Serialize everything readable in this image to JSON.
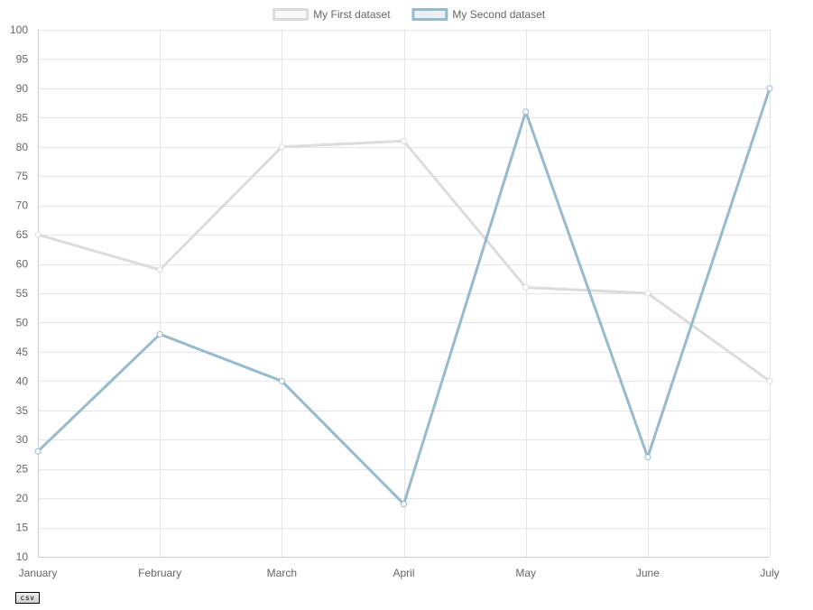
{
  "chart_data": {
    "type": "line",
    "categories": [
      "January",
      "February",
      "March",
      "April",
      "May",
      "June",
      "July"
    ],
    "series": [
      {
        "name": "My First dataset",
        "values": [
          65,
          59,
          80,
          81,
          56,
          55,
          40
        ],
        "color": "#dcdcdc"
      },
      {
        "name": "My Second dataset",
        "values": [
          28,
          48,
          40,
          19,
          86,
          27,
          90
        ],
        "color": "#97bbcd"
      }
    ],
    "ylim": [
      10,
      100
    ],
    "ystep": 5,
    "yticks": [
      "10",
      "15",
      "20",
      "25",
      "30",
      "35",
      "40",
      "45",
      "50",
      "55",
      "60",
      "65",
      "70",
      "75",
      "80",
      "85",
      "90",
      "95",
      "100"
    ],
    "grid": true,
    "legend_position": "top-center",
    "title": "",
    "xlabel": "",
    "ylabel": ""
  },
  "colors": {
    "grid": "#e5e5e5",
    "axis": "#cccccc",
    "tick_text": "#666666",
    "point_fill": "#ffffff"
  },
  "controls": {
    "csv_label": "csv"
  }
}
